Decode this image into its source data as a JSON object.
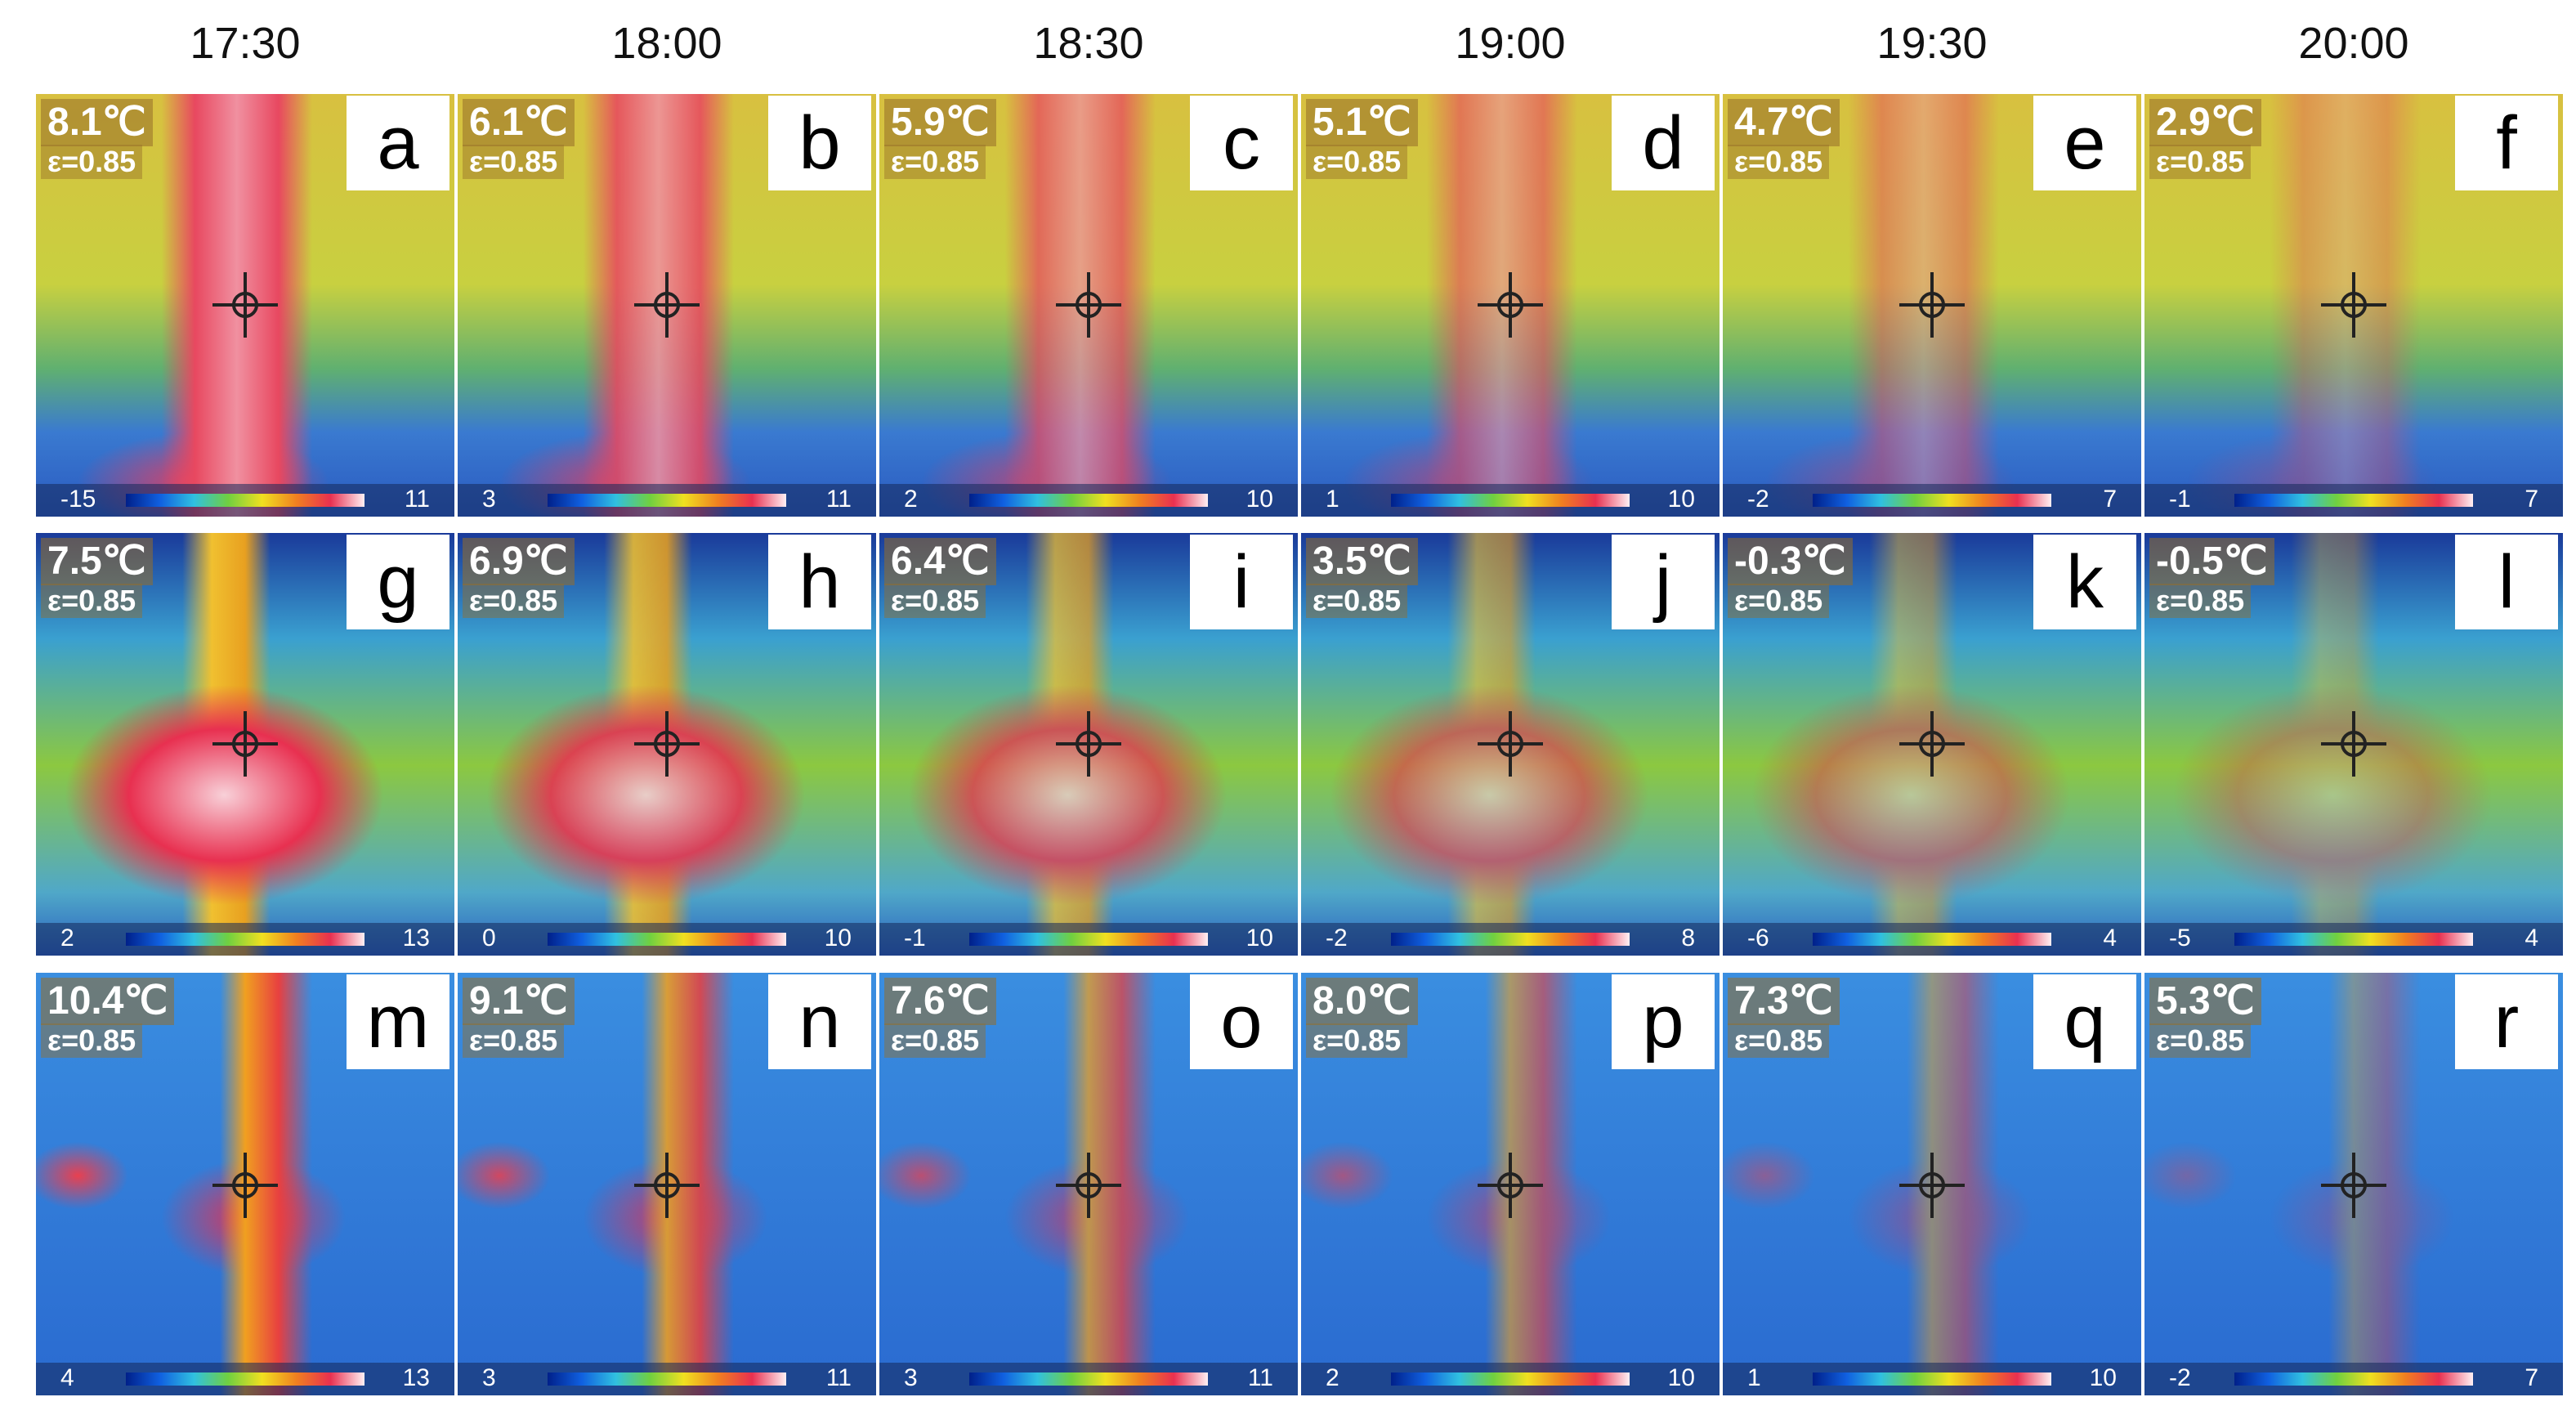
{
  "columns": [
    "17:30",
    "18:00",
    "18:30",
    "19:00",
    "19:30",
    "20:00"
  ],
  "panels": [
    {
      "letter": "a",
      "temp": "8.1℃",
      "emissivity": "ε=0.85",
      "scale_min": -15,
      "scale_max": 11
    },
    {
      "letter": "b",
      "temp": "6.1℃",
      "emissivity": "ε=0.85",
      "scale_min": 3,
      "scale_max": 11
    },
    {
      "letter": "c",
      "temp": "5.9℃",
      "emissivity": "ε=0.85",
      "scale_min": 2,
      "scale_max": 10
    },
    {
      "letter": "d",
      "temp": "5.1℃",
      "emissivity": "ε=0.85",
      "scale_min": 1,
      "scale_max": 10
    },
    {
      "letter": "e",
      "temp": "4.7℃",
      "emissivity": "ε=0.85",
      "scale_min": -2,
      "scale_max": 7
    },
    {
      "letter": "f",
      "temp": "2.9℃",
      "emissivity": "ε=0.85",
      "scale_min": -1,
      "scale_max": 7
    },
    {
      "letter": "g",
      "temp": "7.5℃",
      "emissivity": "ε=0.85",
      "scale_min": 2,
      "scale_max": 13
    },
    {
      "letter": "h",
      "temp": "6.9℃",
      "emissivity": "ε=0.85",
      "scale_min": 0,
      "scale_max": 10
    },
    {
      "letter": "i",
      "temp": "6.4℃",
      "emissivity": "ε=0.85",
      "scale_min": -1,
      "scale_max": 10
    },
    {
      "letter": "j",
      "temp": "3.5℃",
      "emissivity": "ε=0.85",
      "scale_min": -2,
      "scale_max": 8
    },
    {
      "letter": "k",
      "temp": "-0.3℃",
      "emissivity": "ε=0.85",
      "scale_min": -6,
      "scale_max": 4
    },
    {
      "letter": "l",
      "temp": "-0.5℃",
      "emissivity": "ε=0.85",
      "scale_min": -5,
      "scale_max": 4
    },
    {
      "letter": "m",
      "temp": "10.4℃",
      "emissivity": "ε=0.85",
      "scale_min": 4,
      "scale_max": 13
    },
    {
      "letter": "n",
      "temp": "9.1℃",
      "emissivity": "ε=0.85",
      "scale_min": 3,
      "scale_max": 11
    },
    {
      "letter": "o",
      "temp": "7.6℃",
      "emissivity": "ε=0.85",
      "scale_min": 3,
      "scale_max": 11
    },
    {
      "letter": "p",
      "temp": "8.0℃",
      "emissivity": "ε=0.85",
      "scale_min": 2,
      "scale_max": 10
    },
    {
      "letter": "q",
      "temp": "7.3℃",
      "emissivity": "ε=0.85",
      "scale_min": 1,
      "scale_max": 10
    },
    {
      "letter": "r",
      "temp": "5.3℃",
      "emissivity": "ε=0.85",
      "scale_min": -2,
      "scale_max": 7
    }
  ]
}
